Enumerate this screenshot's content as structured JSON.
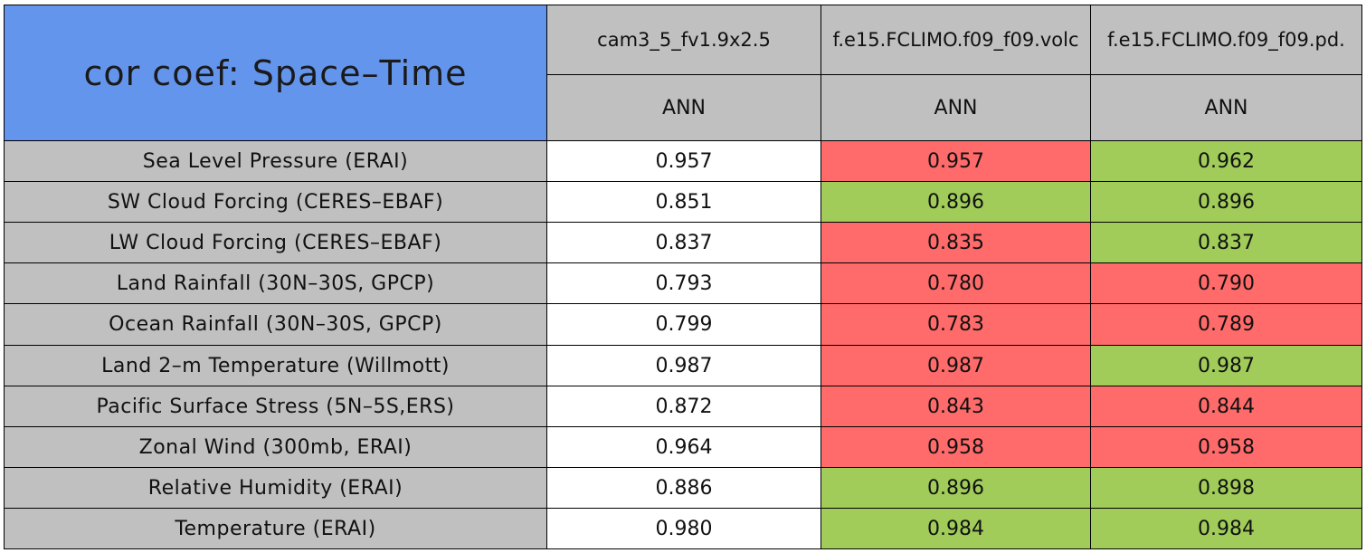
{
  "chart_data": {
    "type": "table",
    "title": "cor coef: Space–Time",
    "columns": [
      {
        "name": "cam3_5_fv1.9x2.5",
        "season": "ANN"
      },
      {
        "name": "f.e15.FCLIMO.f09_f09.volc",
        "season": "ANN"
      },
      {
        "name": "f.e15.FCLIMO.f09_f09.pd.",
        "season": "ANN"
      }
    ],
    "column_header_display": [
      "cam3_5_fv1.9x2.5",
      "f.e15.FCLIMO.f09_f09.volc",
      "f.e15.FCLIMO.f09_f09.pd."
    ],
    "rows": [
      {
        "label": "Sea Level Pressure (ERAI)",
        "values": [
          "0.957",
          "0.957",
          "0.962"
        ],
        "colors": [
          "white",
          "red",
          "green"
        ]
      },
      {
        "label": "SW Cloud Forcing (CERES–EBAF)",
        "values": [
          "0.851",
          "0.896",
          "0.896"
        ],
        "colors": [
          "white",
          "green",
          "green"
        ]
      },
      {
        "label": "LW Cloud Forcing (CERES–EBAF)",
        "values": [
          "0.837",
          "0.835",
          "0.837"
        ],
        "colors": [
          "white",
          "red",
          "green"
        ]
      },
      {
        "label": "Land Rainfall (30N–30S, GPCP)",
        "values": [
          "0.793",
          "0.780",
          "0.790"
        ],
        "colors": [
          "white",
          "red",
          "red"
        ]
      },
      {
        "label": "Ocean Rainfall (30N–30S, GPCP)",
        "values": [
          "0.799",
          "0.783",
          "0.789"
        ],
        "colors": [
          "white",
          "red",
          "red"
        ]
      },
      {
        "label": "Land 2–m Temperature (Willmott)",
        "values": [
          "0.987",
          "0.987",
          "0.987"
        ],
        "colors": [
          "white",
          "red",
          "green"
        ]
      },
      {
        "label": "Pacific Surface Stress (5N–5S,ERS)",
        "values": [
          "0.872",
          "0.843",
          "0.844"
        ],
        "colors": [
          "white",
          "red",
          "red"
        ]
      },
      {
        "label": "Zonal Wind (300mb, ERAI)",
        "values": [
          "0.964",
          "0.958",
          "0.958"
        ],
        "colors": [
          "white",
          "red",
          "red"
        ]
      },
      {
        "label": "Relative Humidity (ERAI)",
        "values": [
          "0.886",
          "0.896",
          "0.898"
        ],
        "colors": [
          "white",
          "green",
          "green"
        ]
      },
      {
        "label": "Temperature (ERAI)",
        "values": [
          "0.980",
          "0.984",
          "0.984"
        ],
        "colors": [
          "white",
          "green",
          "green"
        ]
      }
    ],
    "color_legend": {
      "white": "#ffffff",
      "red": "#ff6a6a",
      "green": "#a1cc5a",
      "header_gray": "#c0c0c0",
      "title_blue": "#6495ed"
    }
  }
}
